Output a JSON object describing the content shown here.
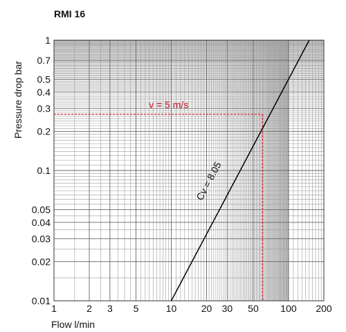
{
  "chart_data": {
    "type": "line",
    "title": "RMI 16",
    "xlabel": "Flow l/min",
    "ylabel": "Pressure drop bar",
    "xscale": "log",
    "yscale": "log",
    "xlim": [
      1,
      200
    ],
    "ylim": [
      0.01,
      1
    ],
    "grid": true,
    "x_ticks": [
      1,
      2,
      3,
      5,
      10,
      20,
      30,
      50,
      100,
      200
    ],
    "y_ticks": [
      0.01,
      0.02,
      0.03,
      0.04,
      0.05,
      0.1,
      0.2,
      0.3,
      0.4,
      0.5,
      0.7,
      1
    ],
    "series": [
      {
        "name": "Cv = 8.05",
        "label": "Cv = 8.05",
        "cv": 8.05,
        "x": [
          10,
          150
        ],
        "y": [
          0.01,
          1
        ],
        "color": "#000000"
      }
    ],
    "annotation": {
      "label": "v = 5 m/s",
      "x": 60,
      "y": 0.27,
      "color": "#d0182a"
    }
  }
}
